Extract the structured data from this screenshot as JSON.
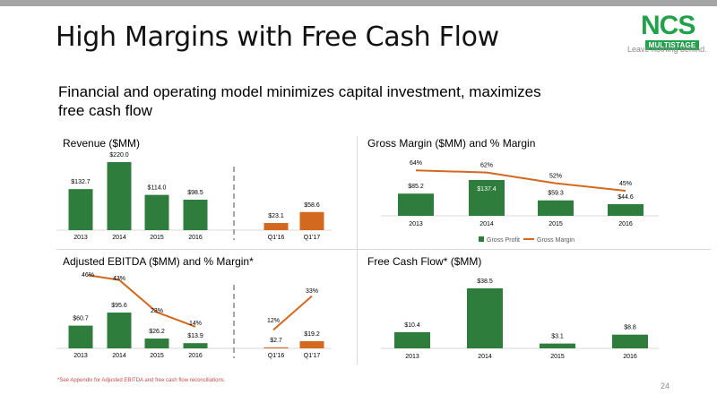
{
  "header": {
    "title": "High Margins with Free Cash Flow",
    "logo_text": "NCS",
    "logo_sub": "MULTISTAGE",
    "tagline": "Leave nothing behind.",
    "subtitle": "Financial and operating model minimizes capital investment, maximizes free cash flow"
  },
  "footer": {
    "footnote": "*See Appendix for Adjusted EBITDA and free cash flow reconciliations.",
    "page_number": "24"
  },
  "colors": {
    "green": "#2e7d3c",
    "orange": "#d2691e",
    "grey_line": "#a6a6a6"
  },
  "chart_data": [
    {
      "id": "revenue",
      "type": "bar",
      "title": "Revenue ($MM)",
      "categories": [
        "2013",
        "2014",
        "2015",
        "2016",
        "Q1'16",
        "Q1'17"
      ],
      "series": [
        {
          "values": [
            132.7,
            220.0,
            114.0,
            98.5,
            23.1,
            58.6
          ]
        }
      ],
      "labels": [
        "$132.7",
        "$220.0",
        "$114.0",
        "$98.5",
        "$23.1",
        "$58.6"
      ],
      "bar_colors": [
        "#2e7d3c",
        "#2e7d3c",
        "#2e7d3c",
        "#2e7d3c",
        "#d2691e",
        "#d2691e"
      ]
    },
    {
      "id": "gross_margin",
      "type": "bar",
      "title": "Gross Margin ($MM) and % Margin",
      "categories": [
        "2013",
        "2014",
        "2015",
        "2016"
      ],
      "series": [
        {
          "name": "Gross Profit",
          "type": "bar",
          "values": [
            85.2,
            137.4,
            59.3,
            44.6
          ],
          "labels": [
            "$85.2",
            "$137.4",
            "$59.3",
            "$44.6"
          ]
        },
        {
          "name": "Gross Margin",
          "type": "line",
          "values": [
            64,
            62,
            52,
            45
          ],
          "labels": [
            "64%",
            "62%",
            "52%",
            "45%"
          ]
        }
      ],
      "legend": "bottom"
    },
    {
      "id": "ebitda",
      "type": "bar",
      "title": "Adjusted EBITDA ($MM) and % Margin*",
      "categories": [
        "2013",
        "2014",
        "2015",
        "2016",
        "Q1'16",
        "Q1'17"
      ],
      "series": [
        {
          "type": "bar",
          "values": [
            60.7,
            95.6,
            26.2,
            13.9,
            2.7,
            19.2
          ],
          "labels": [
            "$60.7",
            "$95.6",
            "$26.2",
            "$13.9",
            "$2.7",
            "$19.2"
          ]
        },
        {
          "type": "line",
          "values": [
            46,
            43,
            23,
            14,
            12,
            33
          ],
          "labels": [
            "46%",
            "43%",
            "23%",
            "14%",
            "12%",
            "33%"
          ]
        }
      ],
      "bar_colors": [
        "#2e7d3c",
        "#2e7d3c",
        "#2e7d3c",
        "#2e7d3c",
        "#d2691e",
        "#d2691e"
      ]
    },
    {
      "id": "fcf",
      "type": "bar",
      "title": "Free Cash Flow* ($MM)",
      "categories": [
        "2013",
        "2014",
        "2015",
        "2016"
      ],
      "series": [
        {
          "values": [
            10.4,
            38.5,
            3.1,
            8.8
          ]
        }
      ],
      "labels": [
        "$10.4",
        "$38.5",
        "$3.1",
        "$8.8"
      ]
    }
  ]
}
